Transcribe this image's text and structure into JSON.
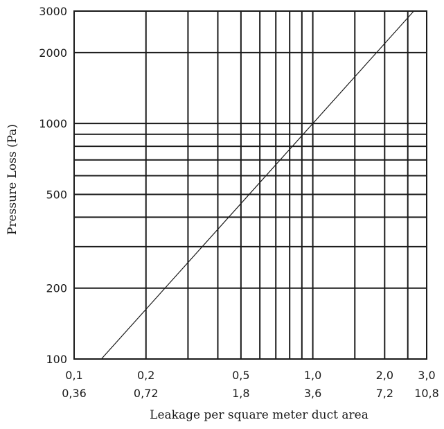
{
  "chart_data": {
    "type": "line",
    "title": "",
    "xlabel": "Leakage per square meter duct area",
    "ylabel": "Pressure Loss (Pa)",
    "x_scale": "log",
    "y_scale": "log",
    "xlim": [
      0.1,
      3.0
    ],
    "ylim": [
      100,
      3000
    ],
    "grid": true,
    "x_ticks": [
      {
        "value": 0.1,
        "label": "0,1",
        "label2": "0,36"
      },
      {
        "value": 0.2,
        "label": "0,2",
        "label2": "0,72"
      },
      {
        "value": 0.5,
        "label": "0,5",
        "label2": "1,8"
      },
      {
        "value": 1.0,
        "label": "1,0",
        "label2": "3,6"
      },
      {
        "value": 2.0,
        "label": "2,0",
        "label2": "7,2"
      },
      {
        "value": 3.0,
        "label": "3,0",
        "label2": "10,8"
      }
    ],
    "x_gridlines": [
      0.2,
      0.3,
      0.4,
      0.5,
      0.6,
      0.7,
      0.8,
      0.9,
      1.0,
      1.5,
      2.0,
      2.5
    ],
    "y_ticks": [
      {
        "value": 3000,
        "label": "3000"
      },
      {
        "value": 2000,
        "label": "2000"
      },
      {
        "value": 1000,
        "label": "1000"
      },
      {
        "value": 500,
        "label": "500"
      },
      {
        "value": 200,
        "label": "200"
      },
      {
        "value": 100,
        "label": "100"
      }
    ],
    "y_gridlines": [
      200,
      300,
      400,
      500,
      600,
      700,
      800,
      900,
      1000,
      2000
    ],
    "series": [
      {
        "x": [
          0.13,
          2.65
        ],
        "y": [
          100,
          3000
        ]
      }
    ]
  }
}
